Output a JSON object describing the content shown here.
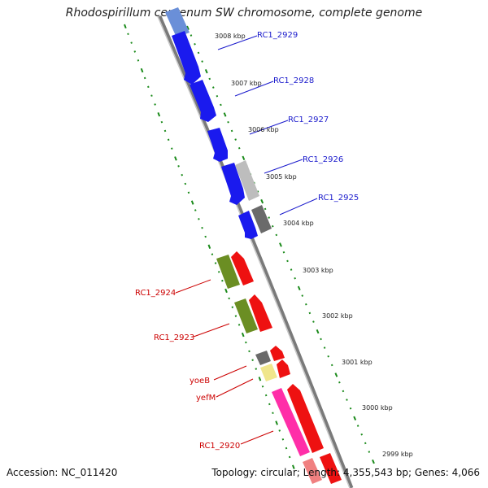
{
  "title": "Rhodospirillum centenum SW chromosome, complete genome",
  "accession_label": "Accession: NC_011420",
  "summary": "Topology: circular; Length: 4,355,543 bp; Genes: 4,066",
  "colors": {
    "positive_strand": "#1a1aee",
    "negative_strand": "#ee0000",
    "positive_label": "#1a1acc",
    "negative_label": "#cc0000",
    "tick_dots": "#1a8a1a",
    "backbone": "#7a7a7a"
  },
  "ticks": [
    "3008 kbp",
    "3007 kbp",
    "3006 kbp",
    "3005 kbp",
    "3004 kbp",
    "3003 kbp",
    "3002 kbp",
    "3001 kbp",
    "3000 kbp",
    "2999 kbp"
  ],
  "genes_positive": [
    "RC1_2929",
    "RC1_2928",
    "RC1_2927",
    "RC1_2926",
    "RC1_2925"
  ],
  "genes_negative": [
    "RC1_2924",
    "RC1_2923",
    "yoeB",
    "yefM",
    "RC1_2920"
  ]
}
